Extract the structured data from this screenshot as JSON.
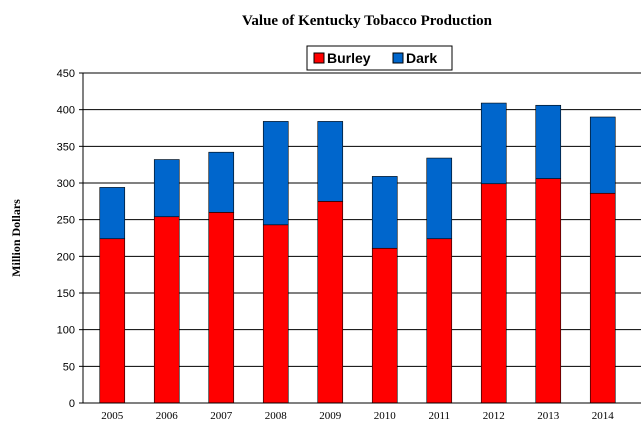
{
  "chart_data": {
    "type": "bar",
    "stacked": true,
    "title": "Value of Kentucky Tobacco Production",
    "xlabel": "",
    "ylabel": "Million Dollars",
    "categories": [
      "2005",
      "2006",
      "2007",
      "2008",
      "2009",
      "2010",
      "2011",
      "2012",
      "2013",
      "2014"
    ],
    "series": [
      {
        "name": "Burley",
        "color": "#ff0000",
        "values": [
          224,
          254,
          260,
          243,
          275,
          211,
          224,
          299,
          306,
          286
        ]
      },
      {
        "name": "Dark",
        "color": "#0066cc",
        "values": [
          70,
          78,
          82,
          141,
          109,
          98,
          110,
          110,
          100,
          104
        ]
      }
    ],
    "ylim": [
      0,
      450
    ],
    "yticks": [
      0,
      50,
      100,
      150,
      200,
      250,
      300,
      350,
      400,
      450
    ],
    "grid": true,
    "legend_position": "top-center"
  }
}
